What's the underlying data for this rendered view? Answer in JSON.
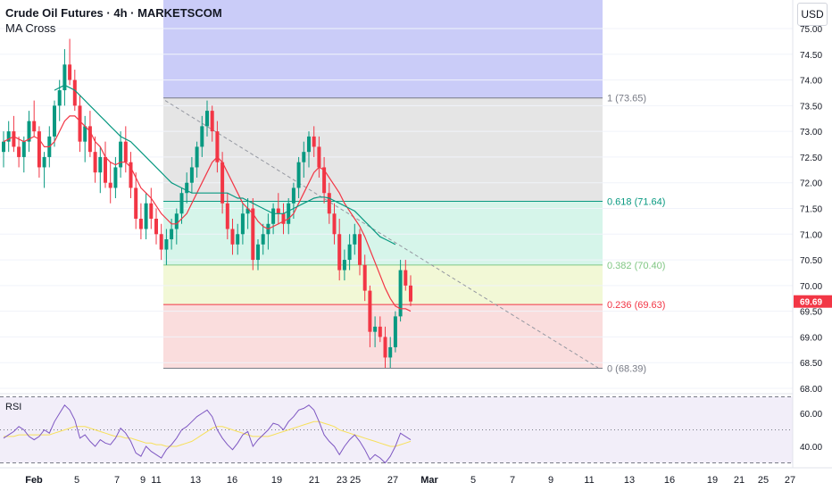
{
  "header": {
    "title": "Crude Oil Futures · 4h · MARKETSCOM",
    "indicator": "MA Cross",
    "currency_button": "USD"
  },
  "rsi_panel": {
    "label": "RSI",
    "ticks": [
      "60.00",
      "40.00"
    ]
  },
  "price_axis": {
    "ticks": [
      "75.00",
      "74.50",
      "74.00",
      "73.50",
      "73.00",
      "72.50",
      "72.00",
      "71.50",
      "71.00",
      "70.50",
      "70.00",
      "69.50",
      "69.00",
      "68.50",
      "68.00"
    ],
    "last_price": "69.69",
    "last_price_color": "#f23645"
  },
  "time_axis": {
    "ticks": [
      "Feb",
      "5",
      "7",
      "9",
      "11",
      "13",
      "16",
      "19",
      "21",
      "23",
      "25",
      "27",
      "Mar",
      "5",
      "7",
      "9",
      "11",
      "13",
      "16",
      "19",
      "21",
      "25",
      "27"
    ]
  },
  "colors": {
    "up": "#089981",
    "down": "#f23645",
    "ma_fast": "#f23645",
    "ma_slow": "#089981",
    "rsi_line": "#7e57c2",
    "rsi_ma": "#f7e05b",
    "range_box": "#4c50e6"
  },
  "chart_data": {
    "type": "candlestick",
    "title": "Crude Oil Futures · 4h · MARKETSCOM",
    "ylim": [
      68.0,
      75.2
    ],
    "fibonacci": [
      {
        "label": "1 (73.65)",
        "level": 73.65,
        "color": "#787b86"
      },
      {
        "label": "0.618 (71.64)",
        "level": 71.64,
        "color": "#089981"
      },
      {
        "label": "0.382 (70.40)",
        "level": 70.4,
        "color": "#81c784"
      },
      {
        "label": "0.236 (69.63)",
        "level": 69.63,
        "color": "#f23645"
      },
      {
        "label": "0 (68.39)",
        "level": 68.39,
        "color": "#787b86"
      }
    ],
    "last_price": 69.69,
    "candles": [
      [
        72.6,
        73.0,
        72.3,
        72.8
      ],
      [
        72.8,
        73.2,
        72.6,
        73.0
      ],
      [
        73.0,
        73.3,
        72.6,
        72.7
      ],
      [
        72.7,
        72.9,
        72.3,
        72.5
      ],
      [
        72.5,
        72.9,
        72.2,
        72.8
      ],
      [
        72.8,
        73.4,
        72.6,
        73.2
      ],
      [
        73.2,
        73.6,
        72.9,
        73.0
      ],
      [
        73.0,
        73.1,
        72.1,
        72.3
      ],
      [
        72.3,
        72.6,
        71.9,
        72.5
      ],
      [
        72.5,
        73.1,
        72.3,
        72.9
      ],
      [
        72.9,
        73.6,
        72.7,
        73.5
      ],
      [
        73.5,
        74.0,
        73.2,
        73.8
      ],
      [
        73.8,
        74.6,
        73.5,
        74.3
      ],
      [
        74.3,
        74.8,
        73.9,
        74.0
      ],
      [
        74.0,
        74.2,
        73.4,
        73.5
      ],
      [
        73.5,
        73.7,
        72.6,
        72.8
      ],
      [
        72.8,
        73.3,
        72.4,
        73.1
      ],
      [
        73.1,
        73.4,
        72.5,
        72.6
      ],
      [
        72.6,
        72.9,
        72.0,
        72.2
      ],
      [
        72.2,
        72.7,
        71.8,
        72.5
      ],
      [
        72.5,
        72.8,
        71.9,
        72.0
      ],
      [
        72.0,
        72.4,
        71.6,
        71.9
      ],
      [
        71.9,
        72.5,
        71.7,
        72.3
      ],
      [
        72.3,
        73.0,
        72.1,
        72.8
      ],
      [
        72.8,
        73.1,
        72.2,
        72.4
      ],
      [
        72.4,
        72.6,
        71.7,
        71.9
      ],
      [
        71.9,
        72.2,
        71.1,
        71.3
      ],
      [
        71.3,
        71.6,
        70.9,
        71.1
      ],
      [
        71.1,
        71.8,
        70.9,
        71.6
      ],
      [
        71.6,
        71.9,
        71.1,
        71.3
      ],
      [
        71.3,
        71.5,
        70.8,
        71.0
      ],
      [
        71.0,
        71.2,
        70.5,
        70.7
      ],
      [
        70.7,
        71.1,
        70.4,
        70.9
      ],
      [
        70.9,
        71.3,
        70.7,
        71.1
      ],
      [
        71.1,
        71.5,
        70.8,
        71.4
      ],
      [
        71.4,
        71.9,
        71.2,
        71.8
      ],
      [
        71.8,
        72.2,
        71.6,
        72.0
      ],
      [
        72.0,
        72.5,
        71.8,
        72.3
      ],
      [
        72.3,
        72.8,
        72.1,
        72.7
      ],
      [
        72.7,
        73.3,
        72.5,
        73.1
      ],
      [
        73.1,
        73.6,
        72.9,
        73.4
      ],
      [
        73.4,
        73.5,
        72.8,
        73.0
      ],
      [
        73.0,
        73.2,
        72.2,
        72.4
      ],
      [
        72.4,
        72.6,
        71.4,
        71.6
      ],
      [
        71.6,
        71.8,
        70.9,
        71.1
      ],
      [
        71.1,
        71.3,
        70.6,
        70.8
      ],
      [
        70.8,
        71.2,
        70.6,
        71.0
      ],
      [
        71.0,
        71.6,
        70.8,
        71.4
      ],
      [
        71.4,
        71.7,
        71.1,
        71.5
      ],
      [
        71.5,
        71.7,
        70.3,
        70.5
      ],
      [
        70.5,
        70.9,
        70.3,
        70.8
      ],
      [
        70.8,
        71.2,
        70.6,
        71.0
      ],
      [
        71.0,
        71.4,
        70.7,
        71.2
      ],
      [
        71.2,
        71.6,
        71.0,
        71.5
      ],
      [
        71.5,
        71.8,
        71.2,
        71.4
      ],
      [
        71.4,
        71.6,
        71.0,
        71.2
      ],
      [
        71.2,
        71.7,
        71.0,
        71.6
      ],
      [
        71.6,
        72.0,
        71.3,
        71.9
      ],
      [
        71.9,
        72.5,
        71.7,
        72.4
      ],
      [
        72.4,
        72.8,
        72.1,
        72.6
      ],
      [
        72.6,
        73.0,
        72.3,
        72.9
      ],
      [
        72.9,
        73.1,
        72.5,
        72.7
      ],
      [
        72.7,
        72.9,
        72.1,
        72.3
      ],
      [
        72.3,
        72.5,
        71.6,
        71.8
      ],
      [
        71.8,
        72.0,
        71.2,
        71.4
      ],
      [
        71.4,
        71.6,
        70.8,
        71.0
      ],
      [
        71.0,
        71.3,
        70.1,
        70.3
      ],
      [
        70.3,
        70.7,
        70.1,
        70.5
      ],
      [
        70.5,
        71.0,
        70.3,
        70.8
      ],
      [
        70.8,
        71.2,
        70.6,
        71.0
      ],
      [
        71.0,
        71.1,
        70.2,
        70.4
      ],
      [
        70.4,
        70.6,
        69.7,
        69.9
      ],
      [
        69.9,
        70.0,
        68.8,
        69.1
      ],
      [
        69.1,
        69.4,
        68.8,
        69.2
      ],
      [
        69.2,
        69.4,
        68.9,
        69.0
      ],
      [
        69.0,
        69.2,
        68.4,
        68.6
      ],
      [
        68.6,
        69.0,
        68.4,
        68.8
      ],
      [
        68.8,
        69.5,
        68.7,
        69.4
      ],
      [
        69.4,
        70.5,
        69.3,
        70.3
      ],
      [
        70.3,
        70.5,
        69.9,
        70.0
      ],
      [
        70.0,
        70.2,
        69.6,
        69.69
      ]
    ],
    "ma_fast": [
      72.8,
      72.85,
      72.9,
      72.85,
      72.8,
      72.85,
      72.9,
      72.85,
      72.7,
      72.7,
      72.8,
      73.0,
      73.2,
      73.3,
      73.3,
      73.2,
      73.1,
      73.0,
      72.8,
      72.7,
      72.5,
      72.4,
      72.35,
      72.4,
      72.4,
      72.3,
      72.1,
      71.9,
      71.8,
      71.7,
      71.55,
      71.4,
      71.3,
      71.2,
      71.2,
      71.3,
      71.4,
      71.6,
      71.8,
      72.0,
      72.2,
      72.4,
      72.5,
      72.4,
      72.2,
      72.0,
      71.8,
      71.6,
      71.5,
      71.4,
      71.25,
      71.15,
      71.1,
      71.15,
      71.2,
      71.25,
      71.3,
      71.4,
      71.6,
      71.8,
      72.0,
      72.2,
      72.3,
      72.25,
      72.1,
      71.95,
      71.8,
      71.6,
      71.45,
      71.3,
      71.15,
      70.95,
      70.7,
      70.45,
      70.2,
      69.95,
      69.75,
      69.6,
      69.55,
      69.55,
      69.5
    ],
    "ma_slow": [
      null,
      null,
      null,
      null,
      null,
      null,
      null,
      null,
      null,
      null,
      73.8,
      73.85,
      73.9,
      73.85,
      73.8,
      73.7,
      73.6,
      73.5,
      73.4,
      73.3,
      73.2,
      73.1,
      73.0,
      72.9,
      72.85,
      72.8,
      72.7,
      72.6,
      72.5,
      72.4,
      72.3,
      72.2,
      72.1,
      72.0,
      71.95,
      71.9,
      71.85,
      71.8,
      71.8,
      71.8,
      71.8,
      71.8,
      71.8,
      71.8,
      71.8,
      71.75,
      71.7,
      71.7,
      71.65,
      71.6,
      71.55,
      71.5,
      71.45,
      71.4,
      71.4,
      71.4,
      71.45,
      71.5,
      71.55,
      71.6,
      71.65,
      71.7,
      71.72,
      71.72,
      71.7,
      71.65,
      71.6,
      71.55,
      71.5,
      71.45,
      71.35,
      71.25,
      71.15,
      71.05,
      70.95,
      70.9,
      70.85,
      70.8,
      null,
      null,
      null
    ],
    "rsi": [
      45,
      47,
      49,
      52,
      50,
      46,
      44,
      46,
      50,
      48,
      55,
      60,
      65,
      62,
      56,
      45,
      47,
      43,
      40,
      44,
      42,
      41,
      45,
      51,
      48,
      43,
      36,
      34,
      40,
      37,
      35,
      33,
      38,
      41,
      45,
      50,
      52,
      55,
      58,
      60,
      62,
      58,
      50,
      45,
      41,
      38,
      42,
      47,
      49,
      40,
      44,
      47,
      50,
      54,
      53,
      50,
      55,
      58,
      62,
      63,
      65,
      62,
      55,
      47,
      43,
      40,
      35,
      40,
      44,
      47,
      43,
      38,
      32,
      35,
      33,
      30,
      34,
      40,
      48,
      46,
      44
    ],
    "rsi_ma": [
      46,
      46,
      46,
      47,
      47,
      47,
      47,
      47,
      47,
      47,
      48,
      49,
      50,
      51,
      52,
      52,
      52,
      51,
      50,
      49,
      48,
      47,
      46,
      46,
      45,
      45,
      44,
      43,
      42,
      42,
      41,
      41,
      40,
      40,
      40,
      41,
      42,
      43,
      45,
      47,
      49,
      51,
      52,
      52,
      51,
      50,
      49,
      48,
      47,
      46,
      46,
      46,
      46,
      47,
      48,
      49,
      50,
      51,
      52,
      53,
      54,
      55,
      55,
      54,
      53,
      52,
      50,
      49,
      48,
      47,
      46,
      45,
      44,
      43,
      42,
      41,
      40,
      40,
      41,
      42,
      43
    ]
  }
}
